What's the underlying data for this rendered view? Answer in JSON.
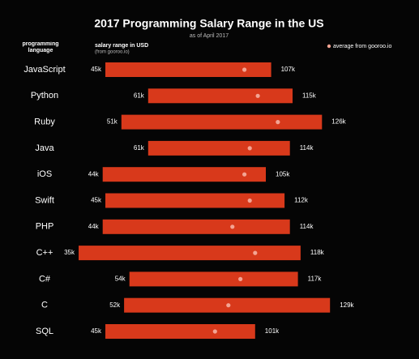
{
  "chart_data": {
    "type": "range",
    "title": "2017 Programming Salary Range in the US",
    "subtitle": "as of April 2017",
    "category_header": "programming language",
    "range_header": "salary range in USD",
    "range_subheader": "(from gooroo.io)",
    "legend_label": "average from gooroo.io",
    "categories": [
      "JavaScript",
      "Python",
      "Ruby",
      "Java",
      "iOS",
      "Swift",
      "PHP",
      "C++",
      "C#",
      "C",
      "SQL"
    ],
    "min_values": [
      45,
      61,
      51,
      61,
      44,
      45,
      44,
      35,
      54,
      52,
      45
    ],
    "min_labels": [
      "45k",
      "61k",
      "51k",
      "61k",
      "44k",
      "45k",
      "44k",
      "35k",
      "54k",
      "52k",
      "45k"
    ],
    "max_values": [
      107,
      115,
      126,
      114,
      105,
      112,
      114,
      118,
      117,
      129,
      101
    ],
    "max_labels": [
      "107k",
      "115k",
      "126k",
      "114k",
      "105k",
      "112k",
      "114k",
      "118k",
      "117k",
      "129k",
      "101k"
    ],
    "avg_values": [
      97,
      102,
      109.5,
      99,
      97,
      99,
      92.5,
      101,
      95.5,
      91,
      86
    ],
    "bar_color": "#d8391b",
    "avg_color": "#f3a493",
    "xlim": [
      10,
      140
    ]
  }
}
